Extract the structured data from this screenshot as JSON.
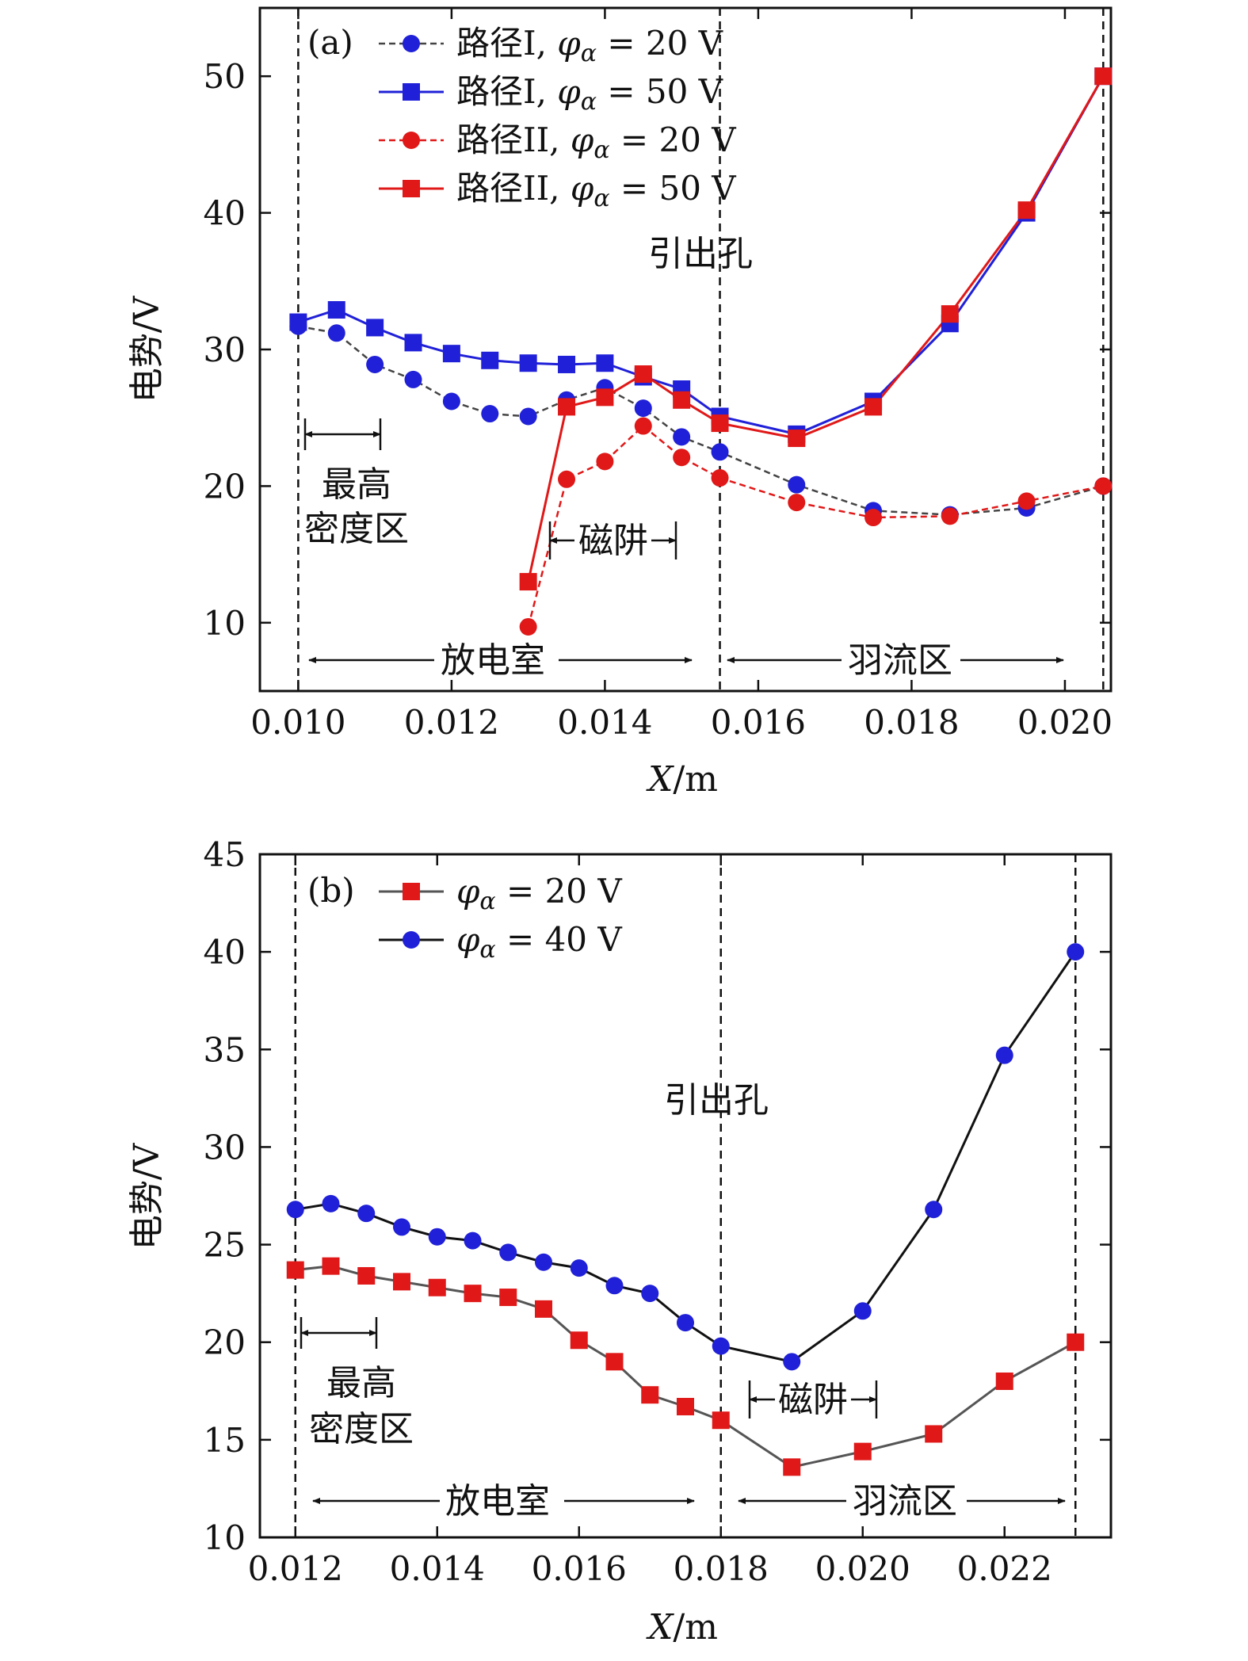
{
  "chart_data": [
    {
      "panel": "(a)",
      "type": "line",
      "xlabel_italic": "X",
      "xlabel_unit": "/m",
      "ylabel": "电势/V",
      "xlim": [
        0.0095,
        0.0206
      ],
      "ylim": [
        5,
        55
      ],
      "xticks": [
        0.01,
        0.012,
        0.014,
        0.016,
        0.018,
        0.02
      ],
      "xtick_labels": [
        "0.010",
        "0.012",
        "0.014",
        "0.016",
        "0.018",
        "0.020"
      ],
      "yticks": [
        10,
        20,
        30,
        40,
        50
      ],
      "ytick_labels": [
        "10",
        "20",
        "30",
        "40",
        "50"
      ],
      "vlines": [
        0.01,
        0.0155,
        0.0205
      ],
      "series": [
        {
          "name": "路径I, φα = 20 V",
          "color": "#2020d8",
          "line_color": "#444444",
          "dashed": true,
          "marker": "circle",
          "x": [
            0.01,
            0.0105,
            0.011,
            0.0115,
            0.012,
            0.0125,
            0.013,
            0.0135,
            0.014,
            0.0145,
            0.015,
            0.0155,
            0.0165,
            0.0175,
            0.0185,
            0.0195,
            0.0205
          ],
          "y": [
            31.7,
            31.2,
            28.9,
            27.8,
            26.2,
            25.3,
            25.1,
            26.3,
            27.2,
            25.7,
            23.6,
            22.5,
            20.1,
            18.2,
            17.9,
            18.4,
            20.0
          ]
        },
        {
          "name": "路径I, φα = 50 V",
          "color": "#2020d8",
          "line_color": "#2020d8",
          "dashed": false,
          "marker": "square",
          "x": [
            0.01,
            0.0105,
            0.011,
            0.0115,
            0.012,
            0.0125,
            0.013,
            0.0135,
            0.014,
            0.0145,
            0.015,
            0.0155,
            0.0165,
            0.0175,
            0.0185,
            0.0195,
            0.0205
          ],
          "y": [
            32.0,
            32.9,
            31.6,
            30.5,
            29.7,
            29.2,
            29.0,
            28.9,
            29.0,
            28.0,
            27.1,
            25.1,
            23.8,
            26.2,
            31.9,
            40.0,
            50.0
          ]
        },
        {
          "name": "路径II, φα = 20 V",
          "color": "#e01818",
          "line_color": "#e01818",
          "dashed": true,
          "marker": "circle",
          "x": [
            0.013,
            0.0135,
            0.014,
            0.0145,
            0.015,
            0.0155,
            0.0165,
            0.0175,
            0.0185,
            0.0195,
            0.0205
          ],
          "y": [
            9.7,
            20.5,
            21.8,
            24.4,
            22.1,
            20.6,
            18.8,
            17.7,
            17.8,
            18.9,
            20.0
          ]
        },
        {
          "name": "路径II, φα = 50 V",
          "color": "#e01818",
          "line_color": "#e01818",
          "dashed": false,
          "marker": "square",
          "x": [
            0.013,
            0.0135,
            0.014,
            0.0145,
            0.015,
            0.0155,
            0.0165,
            0.0175,
            0.0185,
            0.0195,
            0.0205
          ],
          "y": [
            13.0,
            25.8,
            26.5,
            28.2,
            26.3,
            24.6,
            23.5,
            25.8,
            32.6,
            40.2,
            50.0
          ]
        }
      ],
      "legend": [
        {
          "name": "路径I, ",
          "phi": "φ",
          "sub": "α",
          "eq": " = 20 V"
        },
        {
          "name": "路径I, ",
          "phi": "φ",
          "sub": "α",
          "eq": " = 50 V"
        },
        {
          "name": "路径II, ",
          "phi": "φ",
          "sub": "α",
          "eq": " = 20 V"
        },
        {
          "name": "路径II, ",
          "phi": "φ",
          "sub": "α",
          "eq": " = 50 V"
        }
      ],
      "annotations": {
        "exit_hole": "引出孔",
        "highest_density_line1": "最高",
        "highest_density_line2": "密度区",
        "magnetic_cusp": "磁阱",
        "discharge_chamber": "放电室",
        "plume_region": "羽流区"
      }
    },
    {
      "panel": "(b)",
      "type": "line",
      "xlabel_italic": "X",
      "xlabel_unit": "/m",
      "ylabel": "电势/V",
      "xlim": [
        0.0115,
        0.0235
      ],
      "ylim": [
        10,
        45
      ],
      "xticks": [
        0.012,
        0.014,
        0.016,
        0.018,
        0.02,
        0.022
      ],
      "xtick_labels": [
        "0.012",
        "0.014",
        "0.016",
        "0.018",
        "0.020",
        "0.022"
      ],
      "yticks": [
        10,
        15,
        20,
        25,
        30,
        35,
        40,
        45
      ],
      "ytick_labels": [
        "10",
        "15",
        "20",
        "25",
        "30",
        "35",
        "40",
        "45"
      ],
      "vlines": [
        0.012,
        0.018,
        0.023
      ],
      "series": [
        {
          "name": "φα = 20 V",
          "color": "#e01818",
          "line_color": "#555555",
          "dashed": false,
          "marker": "square",
          "x": [
            0.012,
            0.0125,
            0.013,
            0.0135,
            0.014,
            0.0145,
            0.015,
            0.0155,
            0.016,
            0.0165,
            0.017,
            0.0175,
            0.018,
            0.019,
            0.02,
            0.021,
            0.022,
            0.023
          ],
          "y": [
            23.7,
            23.9,
            23.4,
            23.1,
            22.8,
            22.5,
            22.3,
            21.7,
            20.1,
            19.0,
            17.3,
            16.7,
            16.0,
            13.6,
            14.4,
            15.3,
            18.0,
            20.0
          ]
        },
        {
          "name": "φα = 40 V",
          "color": "#2020d8",
          "line_color": "#111111",
          "dashed": false,
          "marker": "circle",
          "x": [
            0.012,
            0.0125,
            0.013,
            0.0135,
            0.014,
            0.0145,
            0.015,
            0.0155,
            0.016,
            0.0165,
            0.017,
            0.0175,
            0.018,
            0.019,
            0.02,
            0.021,
            0.022,
            0.023
          ],
          "y": [
            26.8,
            27.1,
            26.6,
            25.9,
            25.4,
            25.2,
            24.6,
            24.1,
            23.8,
            22.9,
            22.5,
            21.0,
            19.8,
            19.0,
            21.6,
            26.8,
            34.7,
            40.0
          ]
        }
      ],
      "legend": [
        {
          "name": "",
          "phi": "φ",
          "sub": "α",
          "eq": " = 20 V"
        },
        {
          "name": "",
          "phi": "φ",
          "sub": "α",
          "eq": " = 40 V"
        }
      ],
      "annotations": {
        "exit_hole": "引出孔",
        "highest_density_line1": "最高",
        "highest_density_line2": "密度区",
        "magnetic_cusp": "磁阱",
        "discharge_chamber": "放电室",
        "plume_region": "羽流区"
      }
    }
  ]
}
